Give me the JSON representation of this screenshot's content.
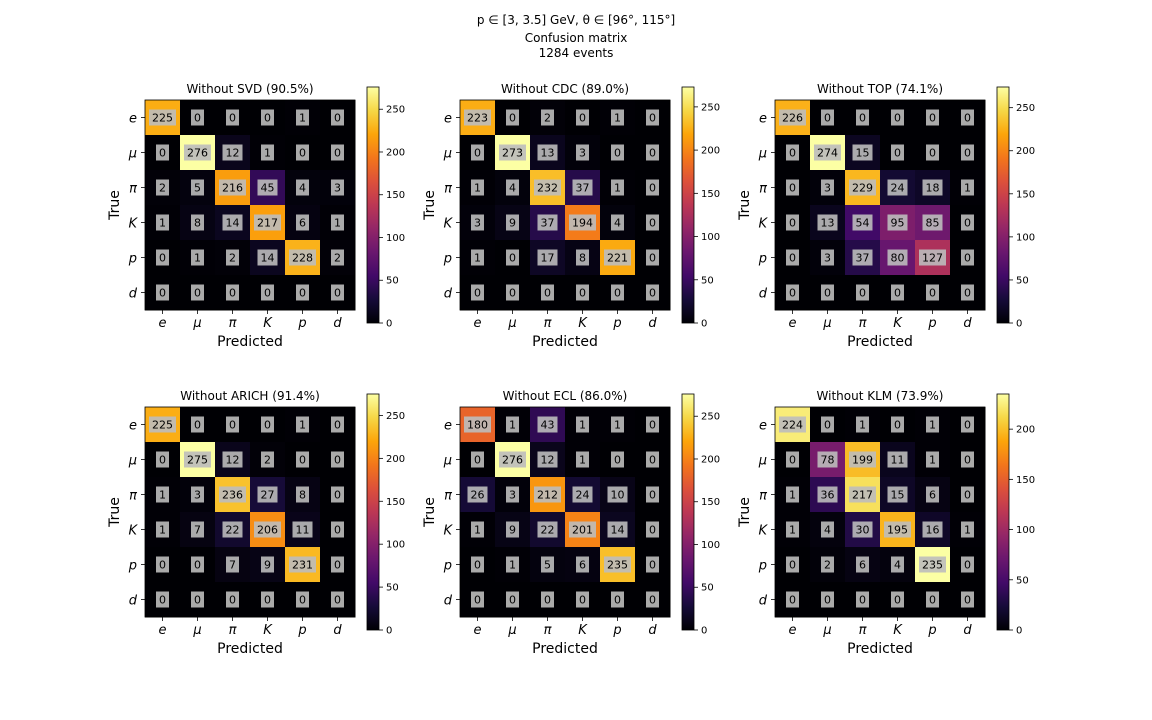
{
  "figure": {
    "title_line1": "p ∈ [3, 3.5] GeV, θ ∈ [96°, 115°]",
    "title_line2": "Confusion matrix",
    "title_line3": "1284 events"
  },
  "chart_data": [
    {
      "type": "heatmap",
      "title": "Without SVD (90.5%)",
      "xlabel": "Predicted",
      "ylabel": "True",
      "x_categories": [
        "e",
        "μ",
        "π",
        "K",
        "p",
        "d"
      ],
      "y_categories": [
        "e",
        "μ",
        "π",
        "K",
        "p",
        "d"
      ],
      "values": [
        [
          225,
          0,
          0,
          0,
          1,
          0
        ],
        [
          0,
          276,
          12,
          1,
          0,
          0
        ],
        [
          2,
          5,
          216,
          45,
          4,
          3
        ],
        [
          1,
          8,
          14,
          217,
          6,
          1
        ],
        [
          0,
          1,
          2,
          14,
          228,
          2
        ],
        [
          0,
          0,
          0,
          0,
          0,
          0
        ]
      ],
      "colorbar_range": [
        0,
        276
      ],
      "colorbar_ticks": [
        0,
        50,
        100,
        150,
        200,
        250
      ],
      "colormap": "inferno"
    },
    {
      "type": "heatmap",
      "title": "Without CDC (89.0%)",
      "xlabel": "Predicted",
      "ylabel": "True",
      "x_categories": [
        "e",
        "μ",
        "π",
        "K",
        "p",
        "d"
      ],
      "y_categories": [
        "e",
        "μ",
        "π",
        "K",
        "p",
        "d"
      ],
      "values": [
        [
          223,
          0,
          2,
          0,
          1,
          0
        ],
        [
          0,
          273,
          13,
          3,
          0,
          0
        ],
        [
          1,
          4,
          232,
          37,
          1,
          0
        ],
        [
          3,
          9,
          37,
          194,
          4,
          0
        ],
        [
          1,
          0,
          17,
          8,
          221,
          0
        ],
        [
          0,
          0,
          0,
          0,
          0,
          0
        ]
      ],
      "colorbar_range": [
        0,
        273
      ],
      "colorbar_ticks": [
        0,
        50,
        100,
        150,
        200,
        250
      ],
      "colormap": "inferno"
    },
    {
      "type": "heatmap",
      "title": "Without TOP (74.1%)",
      "xlabel": "Predicted",
      "ylabel": "True",
      "x_categories": [
        "e",
        "μ",
        "π",
        "K",
        "p",
        "d"
      ],
      "y_categories": [
        "e",
        "μ",
        "π",
        "K",
        "p",
        "d"
      ],
      "values": [
        [
          226,
          0,
          0,
          0,
          0,
          0
        ],
        [
          0,
          274,
          15,
          0,
          0,
          0
        ],
        [
          0,
          3,
          229,
          24,
          18,
          1
        ],
        [
          0,
          13,
          54,
          95,
          85,
          0
        ],
        [
          0,
          3,
          37,
          80,
          127,
          0
        ],
        [
          0,
          0,
          0,
          0,
          0,
          0
        ]
      ],
      "colorbar_range": [
        0,
        274
      ],
      "colorbar_ticks": [
        0,
        50,
        100,
        150,
        200,
        250
      ],
      "colormap": "inferno"
    },
    {
      "type": "heatmap",
      "title": "Without ARICH (91.4%)",
      "xlabel": "Predicted",
      "ylabel": "True",
      "x_categories": [
        "e",
        "μ",
        "π",
        "K",
        "p",
        "d"
      ],
      "y_categories": [
        "e",
        "μ",
        "π",
        "K",
        "p",
        "d"
      ],
      "values": [
        [
          225,
          0,
          0,
          0,
          1,
          0
        ],
        [
          0,
          275,
          12,
          2,
          0,
          0
        ],
        [
          1,
          3,
          236,
          27,
          8,
          0
        ],
        [
          1,
          7,
          22,
          206,
          11,
          0
        ],
        [
          0,
          0,
          7,
          9,
          231,
          0
        ],
        [
          0,
          0,
          0,
          0,
          0,
          0
        ]
      ],
      "colorbar_range": [
        0,
        275
      ],
      "colorbar_ticks": [
        0,
        50,
        100,
        150,
        200,
        250
      ],
      "colormap": "inferno"
    },
    {
      "type": "heatmap",
      "title": "Without ECL (86.0%)",
      "xlabel": "Predicted",
      "ylabel": "True",
      "x_categories": [
        "e",
        "μ",
        "π",
        "K",
        "p",
        "d"
      ],
      "y_categories": [
        "e",
        "μ",
        "π",
        "K",
        "p",
        "d"
      ],
      "values": [
        [
          180,
          1,
          43,
          1,
          1,
          0
        ],
        [
          0,
          276,
          12,
          1,
          0,
          0
        ],
        [
          26,
          3,
          212,
          24,
          10,
          0
        ],
        [
          1,
          9,
          22,
          201,
          14,
          0
        ],
        [
          0,
          1,
          5,
          6,
          235,
          0
        ],
        [
          0,
          0,
          0,
          0,
          0,
          0
        ]
      ],
      "colorbar_range": [
        0,
        276
      ],
      "colorbar_ticks": [
        0,
        50,
        100,
        150,
        200,
        250
      ],
      "colormap": "inferno"
    },
    {
      "type": "heatmap",
      "title": "Without KLM (73.9%)",
      "xlabel": "Predicted",
      "ylabel": "True",
      "x_categories": [
        "e",
        "μ",
        "π",
        "K",
        "p",
        "d"
      ],
      "y_categories": [
        "e",
        "μ",
        "π",
        "K",
        "p",
        "d"
      ],
      "values": [
        [
          224,
          0,
          1,
          0,
          1,
          0
        ],
        [
          0,
          78,
          199,
          11,
          1,
          0
        ],
        [
          1,
          36,
          217,
          15,
          6,
          0
        ],
        [
          1,
          4,
          30,
          195,
          16,
          1
        ],
        [
          0,
          2,
          6,
          4,
          235,
          0
        ],
        [
          0,
          0,
          0,
          0,
          0,
          0
        ]
      ],
      "colorbar_range": [
        0,
        235
      ],
      "colorbar_ticks": [
        0,
        50,
        100,
        150,
        200
      ],
      "colormap": "inferno"
    }
  ]
}
